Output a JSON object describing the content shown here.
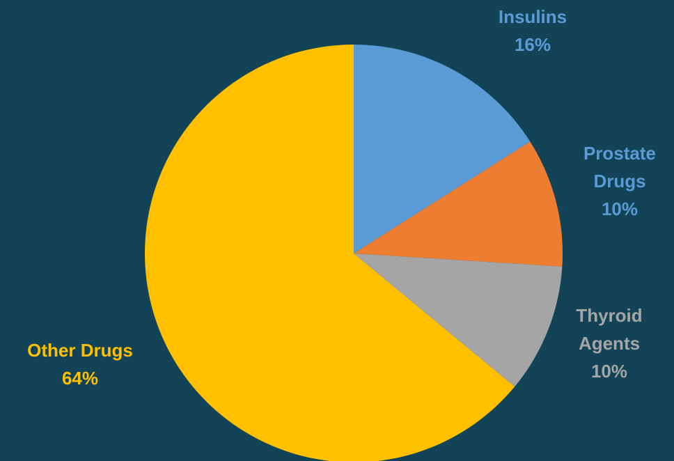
{
  "chart_data": {
    "type": "pie",
    "title": "",
    "legend": "none",
    "slices": [
      {
        "name": "Insulins",
        "label_lines": [
          "Insulins"
        ],
        "value": 16,
        "value_label": "16%",
        "color": "#5B9BD5",
        "label_color": "#5B9BD5"
      },
      {
        "name": "Prostate Drugs",
        "label_lines": [
          "Prostate",
          "Drugs"
        ],
        "value": 10,
        "value_label": "10%",
        "color": "#ED7D31",
        "label_color": "#5B9BD5"
      },
      {
        "name": "Thyroid Agents",
        "label_lines": [
          "Thyroid",
          "Agents"
        ],
        "value": 10,
        "value_label": "10%",
        "color": "#A5A5A5",
        "label_color": "#A5A5A5"
      },
      {
        "name": "Other Drugs",
        "label_lines": [
          "Other Drugs"
        ],
        "value": 64,
        "value_label": "64%",
        "color": "#FFC000",
        "label_color": "#FFC000"
      }
    ]
  },
  "colors": {
    "background": "#124357"
  }
}
